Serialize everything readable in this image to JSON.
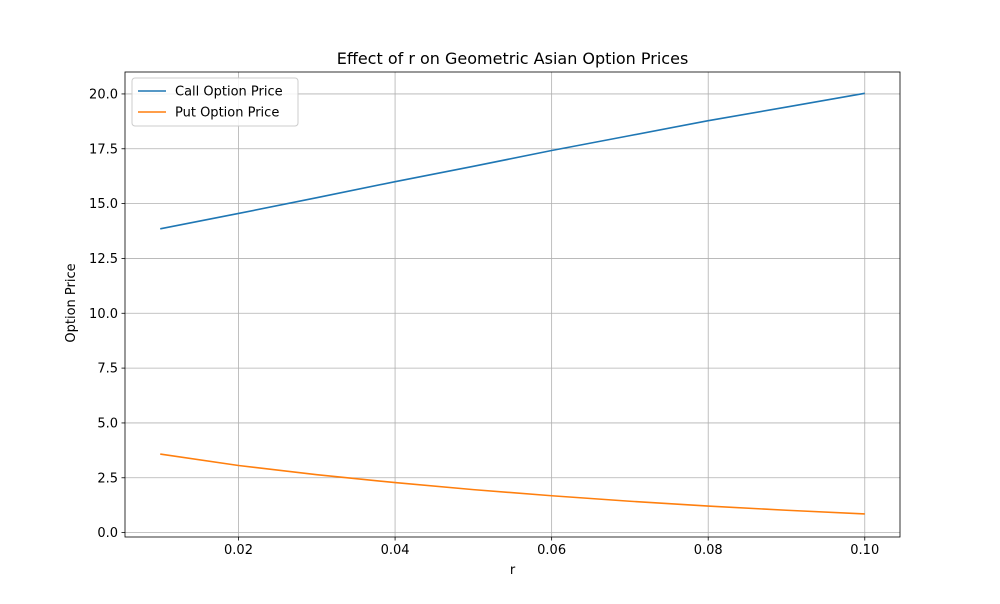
{
  "chart_data": {
    "type": "line",
    "title": "Effect of r on Geometric Asian Option Prices",
    "xlabel": "r",
    "ylabel": "Option Price",
    "xlim": [
      0.0055,
      0.1045
    ],
    "ylim": [
      -0.2,
      21.0
    ],
    "xticks": [
      0.02,
      0.04,
      0.06,
      0.08,
      0.1
    ],
    "xtick_labels": [
      "0.02",
      "0.04",
      "0.06",
      "0.08",
      "0.10"
    ],
    "yticks": [
      0.0,
      2.5,
      5.0,
      7.5,
      10.0,
      12.5,
      15.0,
      17.5,
      20.0
    ],
    "ytick_labels": [
      "0.0",
      "2.5",
      "5.0",
      "7.5",
      "10.0",
      "12.5",
      "15.0",
      "17.5",
      "20.0"
    ],
    "grid": true,
    "legend_position": "upper-left",
    "x": [
      0.01,
      0.02,
      0.03,
      0.04,
      0.05,
      0.06,
      0.07,
      0.08,
      0.09,
      0.1
    ],
    "series": [
      {
        "name": "Call Option Price",
        "color": "#1f77b4",
        "values": [
          13.85,
          14.55,
          15.27,
          16.0,
          16.7,
          17.42,
          18.1,
          18.78,
          19.4,
          20.03
        ]
      },
      {
        "name": "Put Option Price",
        "color": "#ff7f0e",
        "values": [
          3.58,
          3.06,
          2.64,
          2.28,
          1.96,
          1.68,
          1.43,
          1.21,
          1.02,
          0.85
        ]
      }
    ]
  }
}
